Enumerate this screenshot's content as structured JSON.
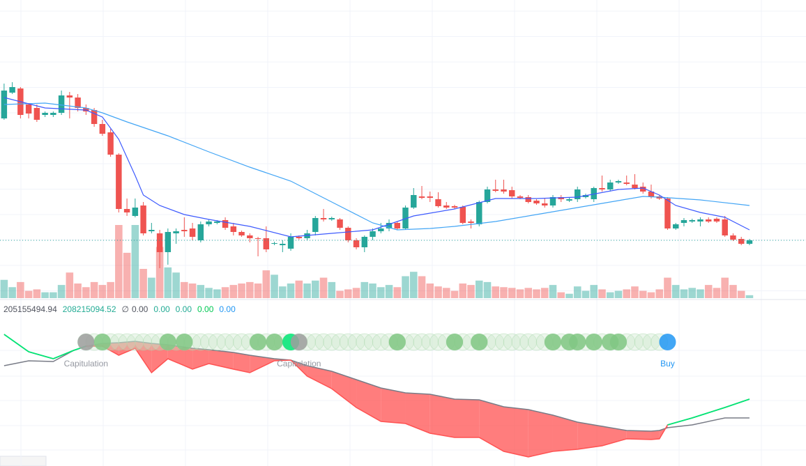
{
  "chart_data": {
    "type": "candlestick",
    "xlim": [
      -0.5,
      97.9
    ],
    "ylim": [
      0,
      430
    ],
    "colors": {
      "up": "#26a69a",
      "down": "#ef5350",
      "ma_fast": "#3d5afe",
      "ma_slow": "#42a5f5",
      "base": "#787b86",
      "signal_up": "#00e676",
      "fill": "#ff5252"
    },
    "open": [
      260,
      297,
      303,
      280,
      275,
      265,
      265,
      268,
      293,
      290,
      275,
      272,
      252,
      240,
      208,
      130,
      120,
      135,
      98,
      95,
      68,
      95,
      100,
      102,
      85,
      108,
      110,
      114,
      105,
      97,
      92,
      88,
      88,
      80,
      78,
      73,
      90,
      88,
      97,
      117,
      115,
      115,
      103,
      85,
      75,
      90,
      98,
      102,
      110,
      102,
      132,
      148,
      148,
      144,
      135,
      134,
      133,
      112,
      108,
      140,
      158,
      158,
      157,
      148,
      147,
      142,
      138,
      135,
      147,
      142,
      144,
      147,
      144,
      160,
      158,
      168,
      168,
      165,
      162,
      155,
      148,
      145,
      102,
      110,
      112,
      112,
      115,
      116,
      115,
      92,
      87,
      80
    ],
    "high": [
      310,
      312,
      305,
      282,
      280,
      270,
      270,
      300,
      298,
      295,
      280,
      275,
      258,
      245,
      210,
      145,
      145,
      140,
      110,
      100,
      102,
      102,
      118,
      110,
      112,
      115,
      114,
      118,
      110,
      99,
      95,
      90,
      105,
      83,
      85,
      95,
      92,
      100,
      120,
      130,
      119,
      117,
      105,
      88,
      92,
      102,
      110,
      115,
      112,
      135,
      160,
      163,
      155,
      154,
      140,
      136,
      135,
      115,
      142,
      162,
      172,
      172,
      162,
      150,
      150,
      144,
      145,
      150,
      150,
      146,
      162,
      152,
      162,
      178,
      172,
      172,
      178,
      180,
      168,
      165,
      150,
      147,
      110,
      117,
      116,
      118,
      118,
      118,
      120,
      95,
      90,
      87
    ],
    "low": [
      258,
      295,
      260,
      260,
      255,
      262,
      262,
      265,
      260,
      270,
      265,
      248,
      235,
      205,
      125,
      120,
      118,
      92,
      95,
      45,
      50,
      80,
      90,
      85,
      82,
      105,
      108,
      100,
      92,
      90,
      82,
      62,
      68,
      78,
      68,
      70,
      86,
      85,
      92,
      112,
      113,
      100,
      82,
      72,
      68,
      85,
      95,
      98,
      100,
      100,
      130,
      144,
      140,
      132,
      130,
      130,
      108,
      102,
      105,
      138,
      154,
      152,
      145,
      144,
      138,
      136,
      132,
      132,
      140,
      140,
      140,
      145,
      140,
      155,
      155,
      166,
      164,
      158,
      152,
      145,
      143,
      100,
      100,
      105,
      110,
      105,
      110,
      110,
      90,
      84,
      78,
      78
    ],
    "close": [
      300,
      305,
      265,
      267,
      258,
      268,
      268,
      293,
      290,
      275,
      270,
      252,
      238,
      208,
      130,
      125,
      132,
      95,
      100,
      68,
      97,
      98,
      98,
      90,
      108,
      112,
      112,
      103,
      97,
      92,
      88,
      87,
      72,
      81,
      80,
      90,
      88,
      95,
      117,
      115,
      117,
      103,
      85,
      75,
      90,
      98,
      102,
      110,
      102,
      132,
      150,
      146,
      146,
      134,
      132,
      132,
      110,
      110,
      140,
      158,
      156,
      155,
      148,
      146,
      140,
      138,
      135,
      147,
      144,
      144,
      158,
      150,
      160,
      158,
      168,
      170,
      166,
      160,
      155,
      148,
      145,
      102,
      108,
      114,
      114,
      115,
      112,
      112,
      92,
      86,
      80,
      85
    ],
    "volume": [
      25,
      15,
      22,
      10,
      12,
      8,
      8,
      18,
      35,
      20,
      15,
      22,
      18,
      22,
      100,
      62,
      100,
      40,
      28,
      70,
      42,
      35,
      22,
      20,
      18,
      14,
      12,
      15,
      18,
      20,
      22,
      20,
      38,
      32,
      16,
      20,
      24,
      20,
      24,
      28,
      22,
      10,
      12,
      14,
      22,
      20,
      15,
      18,
      15,
      30,
      36,
      30,
      20,
      16,
      14,
      10,
      20,
      18,
      24,
      22,
      16,
      15,
      14,
      12,
      14,
      12,
      14,
      18,
      8,
      6,
      16,
      10,
      18,
      12,
      8,
      10,
      12,
      16,
      10,
      8,
      12,
      28,
      18,
      12,
      14,
      12,
      18,
      14,
      28,
      18,
      10,
      4
    ],
    "ma_fast": {
      "x": [
        0,
        5,
        10,
        12,
        14,
        16,
        17,
        19,
        22,
        25,
        30,
        35,
        40,
        45,
        50,
        55,
        60,
        65,
        70,
        75,
        78,
        80,
        82,
        85,
        88,
        91
      ],
      "values": [
        290,
        275,
        272,
        262,
        230,
        178,
        150,
        135,
        122,
        115,
        105,
        90,
        95,
        100,
        120,
        130,
        145,
        145,
        147,
        158,
        160,
        150,
        135,
        125,
        118,
        100
      ]
    },
    "ma_slow": {
      "x": [
        0,
        5,
        10,
        12,
        15,
        20,
        25,
        30,
        35,
        40,
        45,
        48,
        52,
        55,
        60,
        65,
        70,
        75,
        78,
        80,
        85,
        91
      ],
      "values": [
        280,
        282,
        275,
        268,
        255,
        235,
        212,
        190,
        170,
        140,
        110,
        100,
        102,
        105,
        112,
        122,
        132,
        142,
        148,
        147,
        143,
        135
      ]
    },
    "readout": {
      "symbol": "∅",
      "items": [
        {
          "text": "205155494.94",
          "color": "#50535e"
        },
        {
          "text": "208215094.52",
          "color": "#22ab94"
        },
        {
          "text": "0.00",
          "color": "#50535e"
        },
        {
          "text": "0.00",
          "color": "#22ab94"
        },
        {
          "text": "0.00",
          "color": "#22ab94"
        },
        {
          "text": "0.00",
          "color": "#00c853"
        },
        {
          "text": "0.00",
          "color": "#2196f3"
        }
      ]
    },
    "indicator": {
      "ilim": [
        0,
        209
      ],
      "x": [
        0,
        3,
        6,
        8.5,
        10,
        12,
        14,
        16,
        18,
        20,
        23,
        25,
        28,
        30,
        33,
        35,
        37,
        40,
        43,
        46,
        49,
        52,
        55,
        58,
        61,
        64,
        67,
        70,
        73,
        76,
        79,
        80,
        81,
        84,
        88,
        91
      ],
      "base": [
        144,
        151,
        150,
        166,
        172,
        176,
        177,
        179,
        176,
        174,
        169,
        167,
        163,
        159,
        154,
        152,
        144,
        136,
        124,
        112,
        105,
        103,
        96,
        95,
        85,
        81,
        73,
        63,
        57,
        51,
        50,
        51,
        55,
        59,
        69,
        69
      ],
      "signal": [
        189,
        164,
        154,
        166,
        172,
        172,
        159,
        169,
        134,
        154,
        139,
        147,
        139,
        134,
        151,
        152,
        129,
        111,
        84,
        64,
        61,
        47,
        41,
        41,
        21,
        13,
        21,
        24,
        29,
        39,
        38,
        39,
        59,
        69,
        84,
        96
      ]
    },
    "signals": [
      {
        "x": 10,
        "color": "#9e9e9e"
      },
      {
        "x": 12,
        "color": "#81c784"
      },
      {
        "x": 20,
        "color": "#81c784"
      },
      {
        "x": 22,
        "color": "#81c784"
      },
      {
        "x": 31,
        "color": "#81c784"
      },
      {
        "x": 33,
        "color": "#81c784"
      },
      {
        "x": 35,
        "color": "#00e676"
      },
      {
        "x": 36,
        "color": "#9e9e9e"
      },
      {
        "x": 48,
        "color": "#81c784"
      },
      {
        "x": 55,
        "color": "#81c784"
      },
      {
        "x": 58,
        "color": "#81c784"
      },
      {
        "x": 67,
        "color": "#81c784"
      },
      {
        "x": 69,
        "color": "#81c784"
      },
      {
        "x": 70,
        "color": "#81c784"
      },
      {
        "x": 72,
        "color": "#81c784"
      },
      {
        "x": 74,
        "color": "#81c784"
      },
      {
        "x": 75,
        "color": "#81c784"
      },
      {
        "x": 81,
        "color": "#2196f3"
      }
    ],
    "annotations": [
      {
        "text": "Capitulation",
        "x": 10,
        "color": "#9598a1"
      },
      {
        "text": "Capitulation",
        "x": 36,
        "color": "#9598a1"
      },
      {
        "text": "Buy",
        "x": 81,
        "color": "#2196f3"
      }
    ]
  }
}
